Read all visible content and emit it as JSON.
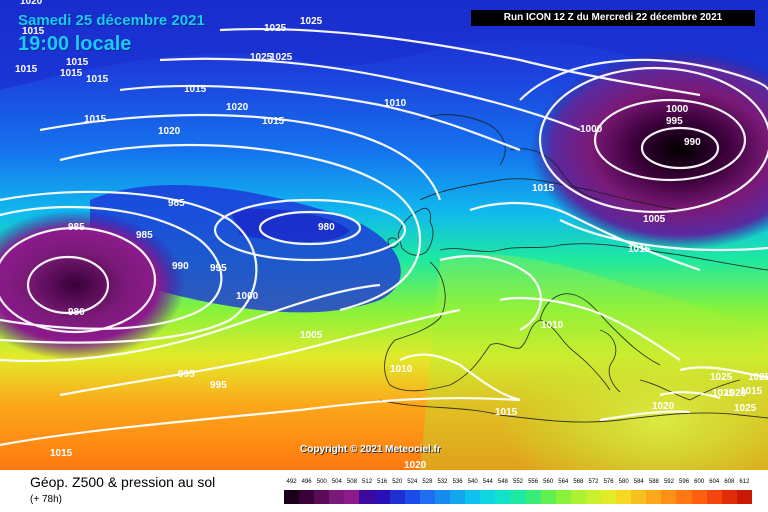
{
  "title": {
    "date": "Samedi 25 décembre 2021",
    "time": "19:00 locale"
  },
  "run_info": "Run ICON 12 Z du Mercredi 22 décembre 2021",
  "copyright": "Copyright © 2021 Meteociel.fr",
  "footer": {
    "title": "Géop. Z500 & pression au sol",
    "subtitle": "(+ 78h)"
  },
  "colorscale": {
    "labels": [
      "492",
      "496",
      "500",
      "504",
      "508",
      "512",
      "516",
      "520",
      "524",
      "528",
      "532",
      "536",
      "540",
      "544",
      "548",
      "552",
      "556",
      "560",
      "564",
      "568",
      "572",
      "576",
      "580",
      "584",
      "588",
      "592",
      "596",
      "600",
      "604",
      "608",
      "612"
    ],
    "colors": [
      "#1a0018",
      "#3a0038",
      "#5a0b55",
      "#7a1a78",
      "#8d1a8d",
      "#3b0a9c",
      "#2a0fb8",
      "#1f2fd2",
      "#1b4be8",
      "#1f6df0",
      "#168af0",
      "#12a6ef",
      "#10c0ee",
      "#0fd6e0",
      "#10e3c8",
      "#1ee8a2",
      "#38ec78",
      "#60f050",
      "#88f23a",
      "#acf232",
      "#c8f02e",
      "#e2ea2a",
      "#f4d822",
      "#f8c01e",
      "#fca81a",
      "#ff9016",
      "#ff7812",
      "#ff600e",
      "#f4460c",
      "#e02c08",
      "#c81a06"
    ]
  },
  "isobar_labels": [
    {
      "text": "1020"
    },
    {
      "text": "1025"
    },
    {
      "text": "1025"
    },
    {
      "text": "1015"
    },
    {
      "text": "1015"
    },
    {
      "text": "1015"
    },
    {
      "text": "1015"
    },
    {
      "text": "1015"
    },
    {
      "text": "1025"
    },
    {
      "text": "1025"
    },
    {
      "text": "1015"
    },
    {
      "text": "1020"
    },
    {
      "text": "1015"
    },
    {
      "text": "1020"
    },
    {
      "text": "1010"
    },
    {
      "text": "1015"
    },
    {
      "text": "1000"
    },
    {
      "text": "995"
    },
    {
      "text": "990"
    },
    {
      "text": "1000"
    },
    {
      "text": "1015"
    },
    {
      "text": "985"
    },
    {
      "text": "985"
    },
    {
      "text": "985"
    },
    {
      "text": "980"
    },
    {
      "text": "990"
    },
    {
      "text": "995"
    },
    {
      "text": "980"
    },
    {
      "text": "1000"
    },
    {
      "text": "1005"
    },
    {
      "text": "1015"
    },
    {
      "text": "1005"
    },
    {
      "text": "1010"
    },
    {
      "text": "995"
    },
    {
      "text": "995"
    },
    {
      "text": "1010"
    },
    {
      "text": "1015"
    },
    {
      "text": "1015"
    },
    {
      "text": "1020"
    },
    {
      "text": "1025"
    },
    {
      "text": "1025"
    },
    {
      "text": "1025"
    },
    {
      "text": "1020"
    },
    {
      "text": "1015"
    },
    {
      "text": "1025"
    },
    {
      "text": "1020"
    }
  ]
}
